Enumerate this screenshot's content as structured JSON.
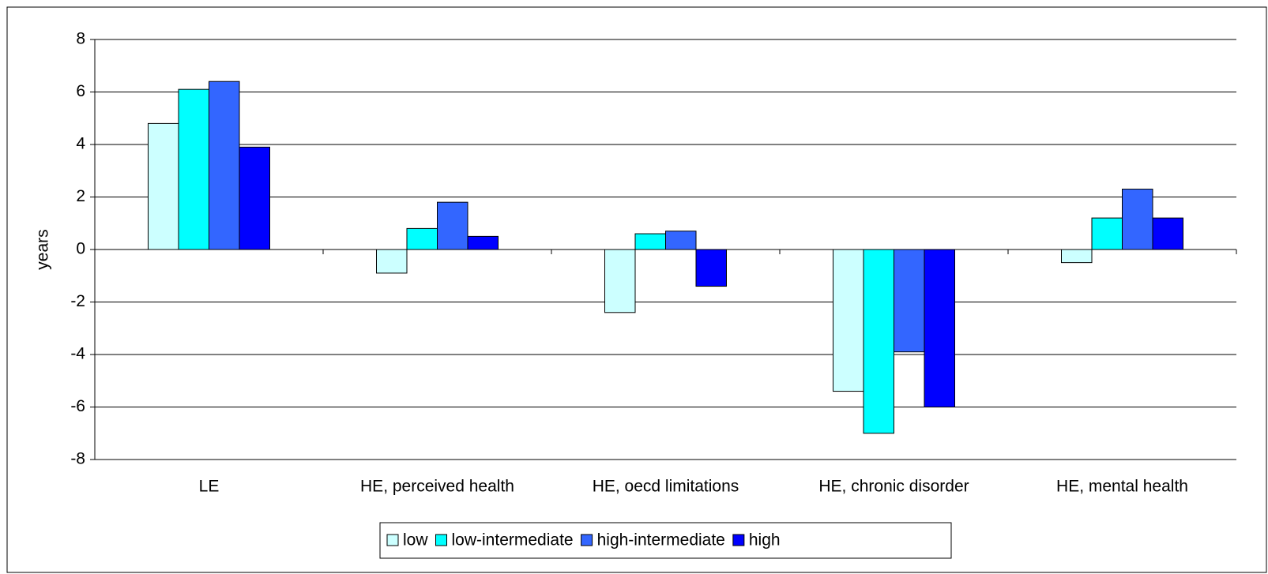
{
  "chart_data": {
    "type": "bar",
    "y_label": "years",
    "categories": [
      "LE",
      "HE, perceived health",
      "HE, oecd limitations",
      "HE, chronic disorder",
      "HE, mental health"
    ],
    "series": [
      {
        "name": "low",
        "color": "#ccffff",
        "values": [
          4.8,
          -0.9,
          -2.4,
          -5.4,
          -0.5
        ]
      },
      {
        "name": "low-intermediate",
        "color": "#00ffff",
        "values": [
          6.1,
          0.8,
          0.6,
          -7.0,
          1.2
        ]
      },
      {
        "name": "high-intermediate",
        "color": "#3366ff",
        "values": [
          6.4,
          1.8,
          0.7,
          -3.9,
          2.3
        ]
      },
      {
        "name": "high",
        "color": "#0000ff",
        "values": [
          3.9,
          0.5,
          -1.4,
          -6.0,
          1.2
        ]
      }
    ],
    "ylim": [
      -8,
      8
    ],
    "yticks": [
      -8,
      -6,
      -4,
      -2,
      0,
      2,
      4,
      6,
      8
    ],
    "grid": true
  }
}
